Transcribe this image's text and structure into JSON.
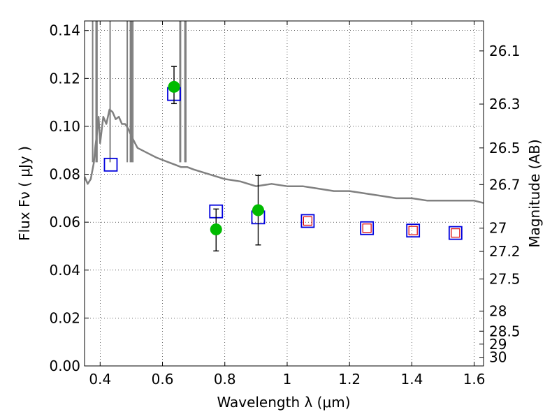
{
  "chart_data": {
    "type": "scatter",
    "xlabel": "Wavelength  λ (μm)",
    "ylabel": "Flux  Fν  ( μJy )",
    "ylabel_right": "Magnitude (AB)",
    "xlim": [
      0.35,
      1.63
    ],
    "ylim": [
      0.0,
      0.144
    ],
    "xticks": [
      0.4,
      0.6,
      0.8,
      1.0,
      1.2,
      1.4,
      1.6
    ],
    "xtick_labels": [
      "0.4",
      "0.6",
      "0.8",
      "1",
      "1.2",
      "1.4",
      "1.6"
    ],
    "yticks": [
      0.0,
      0.02,
      0.04,
      0.06,
      0.08,
      0.1,
      0.12,
      0.14
    ],
    "ytick_labels": [
      "0.00",
      "0.02",
      "0.04",
      "0.06",
      "0.08",
      "0.10",
      "0.12",
      "0.14"
    ],
    "right_ticks": [
      {
        "flux": 0.1315,
        "label": "26.1"
      },
      {
        "flux": 0.1093,
        "label": "26.3"
      },
      {
        "flux": 0.091,
        "label": "26.5"
      },
      {
        "flux": 0.0757,
        "label": "26.7"
      },
      {
        "flux": 0.0575,
        "label": "27"
      },
      {
        "flux": 0.0478,
        "label": "27.2"
      },
      {
        "flux": 0.0363,
        "label": "27.5"
      },
      {
        "flux": 0.0229,
        "label": "28"
      },
      {
        "flux": 0.0145,
        "label": "28.5"
      },
      {
        "flux": 0.0091,
        "label": "29"
      },
      {
        "flux": 0.0036,
        "label": "30"
      }
    ],
    "grid": true,
    "colors": {
      "model": "#808080",
      "observed": "#00bb00",
      "model_box": "#0000dd",
      "extra_box": "#dd0000",
      "errorbar": "#000000"
    },
    "series": [
      {
        "kind": "line",
        "x": [
          0.35,
          0.36,
          0.37,
          0.38,
          0.385,
          0.39,
          0.395,
          0.4,
          0.41,
          0.42,
          0.43,
          0.44,
          0.45,
          0.46,
          0.47,
          0.48,
          0.49,
          0.5,
          0.52,
          0.55,
          0.58,
          0.6,
          0.62,
          0.64,
          0.66,
          0.68,
          0.7,
          0.75,
          0.8,
          0.85,
          0.9,
          0.95,
          1.0,
          1.05,
          1.1,
          1.15,
          1.2,
          1.25,
          1.3,
          1.35,
          1.4,
          1.45,
          1.5,
          1.55,
          1.6,
          1.63
        ],
        "y": [
          0.079,
          0.076,
          0.078,
          0.085,
          0.092,
          0.097,
          0.104,
          0.093,
          0.104,
          0.101,
          0.107,
          0.106,
          0.103,
          0.104,
          0.101,
          0.101,
          0.099,
          0.096,
          0.091,
          0.089,
          0.087,
          0.086,
          0.085,
          0.084,
          0.083,
          0.083,
          0.082,
          0.08,
          0.078,
          0.077,
          0.075,
          0.076,
          0.075,
          0.075,
          0.074,
          0.073,
          0.073,
          0.072,
          0.071,
          0.07,
          0.07,
          0.069,
          0.069,
          0.069,
          0.069,
          0.068
        ]
      },
      {
        "kind": "line_spikes",
        "x": [
          0.376,
          0.387,
          0.39,
          0.432,
          0.487,
          0.497,
          0.501,
          0.505,
          0.656,
          0.658,
          0.672,
          0.675
        ],
        "y": [
          0.144,
          0.144,
          0.144,
          0.144,
          0.144,
          0.144,
          0.144,
          0.144,
          0.144,
          0.144,
          0.144,
          0.144
        ]
      },
      {
        "kind": "points",
        "x": [
          0.637,
          0.772,
          0.907
        ],
        "y": [
          0.1165,
          0.057,
          0.065
        ],
        "err_low": [
          0.1095,
          0.048,
          0.0505
        ],
        "err_high": [
          0.125,
          0.0655,
          0.0795
        ]
      },
      {
        "kind": "blue_boxes",
        "x": [
          0.434,
          0.637,
          0.772,
          0.907,
          1.066,
          1.256,
          1.404,
          1.54
        ],
        "y": [
          0.084,
          0.1135,
          0.0645,
          0.062,
          0.0605,
          0.0575,
          0.0565,
          0.0555
        ]
      },
      {
        "kind": "red_boxes",
        "x": [
          1.066,
          1.256,
          1.404,
          1.54
        ],
        "y": [
          0.0605,
          0.0575,
          0.0565,
          0.0555
        ]
      }
    ]
  }
}
